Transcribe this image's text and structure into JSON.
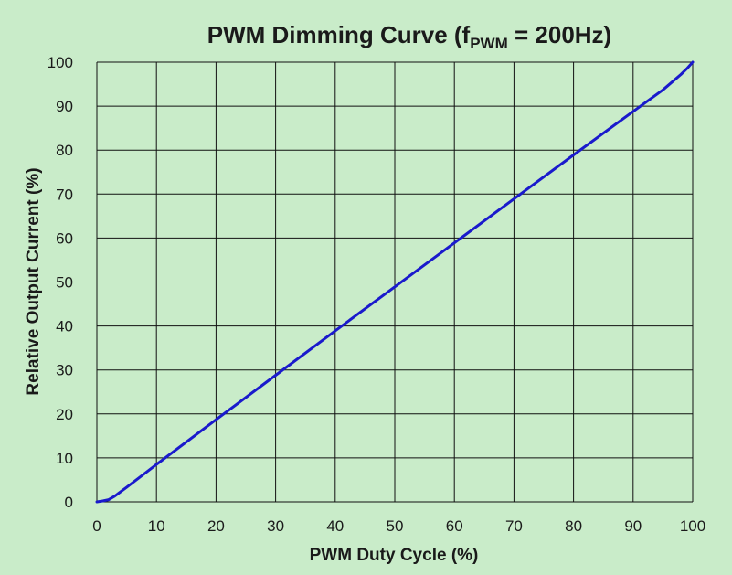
{
  "chart_data": {
    "type": "line",
    "title": {
      "main": "PWM Dimming Curve (f",
      "subscript": "PWM",
      "suffix": " = 200Hz)"
    },
    "xlabel": "PWM Duty Cycle (%)",
    "ylabel": "Relative Output Current (%)",
    "xlim": [
      0,
      100
    ],
    "ylim": [
      0,
      100
    ],
    "xticks": [
      0,
      10,
      20,
      30,
      40,
      50,
      60,
      70,
      80,
      90,
      100
    ],
    "yticks": [
      0,
      10,
      20,
      30,
      40,
      50,
      60,
      70,
      80,
      90,
      100
    ],
    "grid": true,
    "legend": "none",
    "series": [
      {
        "x": [
          0,
          1,
          2,
          3,
          5,
          10,
          20,
          30,
          40,
          50,
          60,
          70,
          80,
          90,
          95,
          98,
          99,
          100
        ],
        "y": [
          0,
          0.2,
          0.5,
          1.3,
          3.3,
          8.5,
          18.7,
          28.8,
          38.9,
          48.9,
          58.9,
          68.9,
          78.9,
          88.8,
          93.7,
          97.2,
          98.5,
          100
        ]
      }
    ],
    "colors": {
      "background": "#c9ecc9",
      "grid": "#111111",
      "line": "#1a1acc"
    }
  }
}
